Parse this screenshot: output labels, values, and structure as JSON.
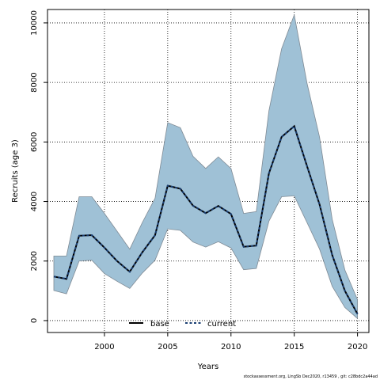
{
  "chart_data": {
    "type": "line",
    "xlabel": "Years",
    "ylabel": "Recruits (age 3)",
    "xlim": [
      1995.5,
      2020.9
    ],
    "ylim": [
      -400,
      10450
    ],
    "xticks": [
      2000,
      2005,
      2010,
      2015,
      2020
    ],
    "yticks": [
      0,
      2000,
      4000,
      6000,
      8000,
      10000
    ],
    "grid": true,
    "legend_position": "bottom-center",
    "x": [
      1996,
      1997,
      1998,
      1999,
      2000,
      2001,
      2002,
      2003,
      2004,
      2005,
      2006,
      2007,
      2008,
      2009,
      2010,
      2011,
      2012,
      2013,
      2014,
      2015,
      2016,
      2017,
      2018,
      2019,
      2020
    ],
    "series": [
      {
        "name": "base",
        "values": [
          1480,
          1400,
          2850,
          2870,
          2450,
          2000,
          1640,
          2300,
          2870,
          4530,
          4430,
          3860,
          3610,
          3850,
          3580,
          2480,
          2520,
          4950,
          6170,
          6530,
          5200,
          3900,
          2200,
          1000,
          220
        ],
        "lower": [
          1010,
          900,
          2000,
          2030,
          1580,
          1320,
          1080,
          1600,
          2030,
          3080,
          3030,
          2640,
          2470,
          2650,
          2440,
          1710,
          1750,
          3340,
          4160,
          4190,
          3300,
          2400,
          1150,
          440,
          70
        ],
        "upper": [
          2170,
          2170,
          4160,
          4160,
          3600,
          3000,
          2400,
          3300,
          4110,
          6650,
          6480,
          5520,
          5110,
          5500,
          5110,
          3600,
          3660,
          7050,
          9130,
          10270,
          7990,
          6160,
          3400,
          1700,
          700
        ]
      },
      {
        "name": "current",
        "values": [
          1480,
          1400,
          2850,
          2870,
          2450,
          2000,
          1640,
          2300,
          2870,
          4530,
          4430,
          3860,
          3610,
          3850,
          3580,
          2480,
          2520,
          4950,
          6170,
          6530,
          5200,
          3900,
          2200,
          1000,
          220
        ]
      }
    ]
  },
  "colors": {
    "band_fill": "#9fc1d6",
    "band_stroke": "#7f8a94",
    "base_line": "#000000",
    "current_line": "#1a3f73"
  },
  "footer_text": "stockassessment.org, LingSb Dec2020, r13459 ,  git: c28bdc2a44ad"
}
